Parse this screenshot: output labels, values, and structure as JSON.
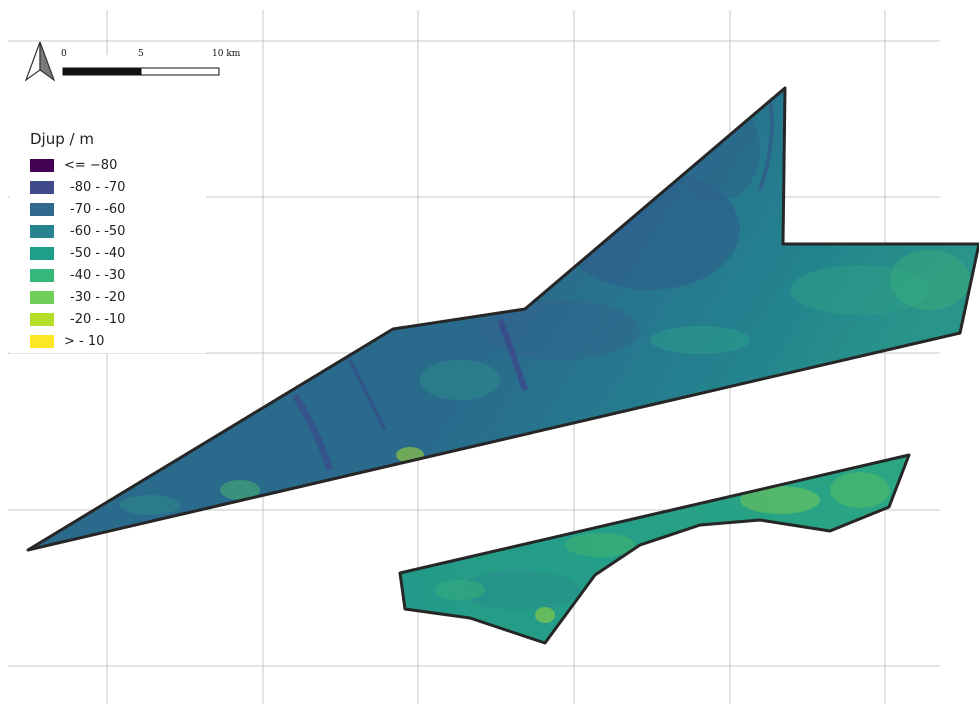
{
  "scale_bar": {
    "labels": [
      "0",
      "5",
      "10 km"
    ]
  },
  "north_arrow": {
    "icon": "north-arrow-icon"
  },
  "legend": {
    "title": "Djup / m",
    "classes": [
      {
        "label": "<= −80",
        "color": "#440154"
      },
      {
        "label": "-80 - -70",
        "color": "#3e4a89"
      },
      {
        "label": "-70 - -60",
        "color": "#31688e"
      },
      {
        "label": "-60 - -50",
        "color": "#26828e"
      },
      {
        "label": "-50 - -40",
        "color": "#1f9e89"
      },
      {
        "label": "-40 - -30",
        "color": "#35b779"
      },
      {
        "label": "-30 - -20",
        "color": "#6ece58"
      },
      {
        "label": "-20 - -10",
        "color": "#b5de2b"
      },
      {
        "label": "> - 10",
        "color": "#fde725"
      }
    ]
  },
  "areas": [
    {
      "name": "northern-survey-area"
    },
    {
      "name": "southern-survey-area"
    }
  ]
}
